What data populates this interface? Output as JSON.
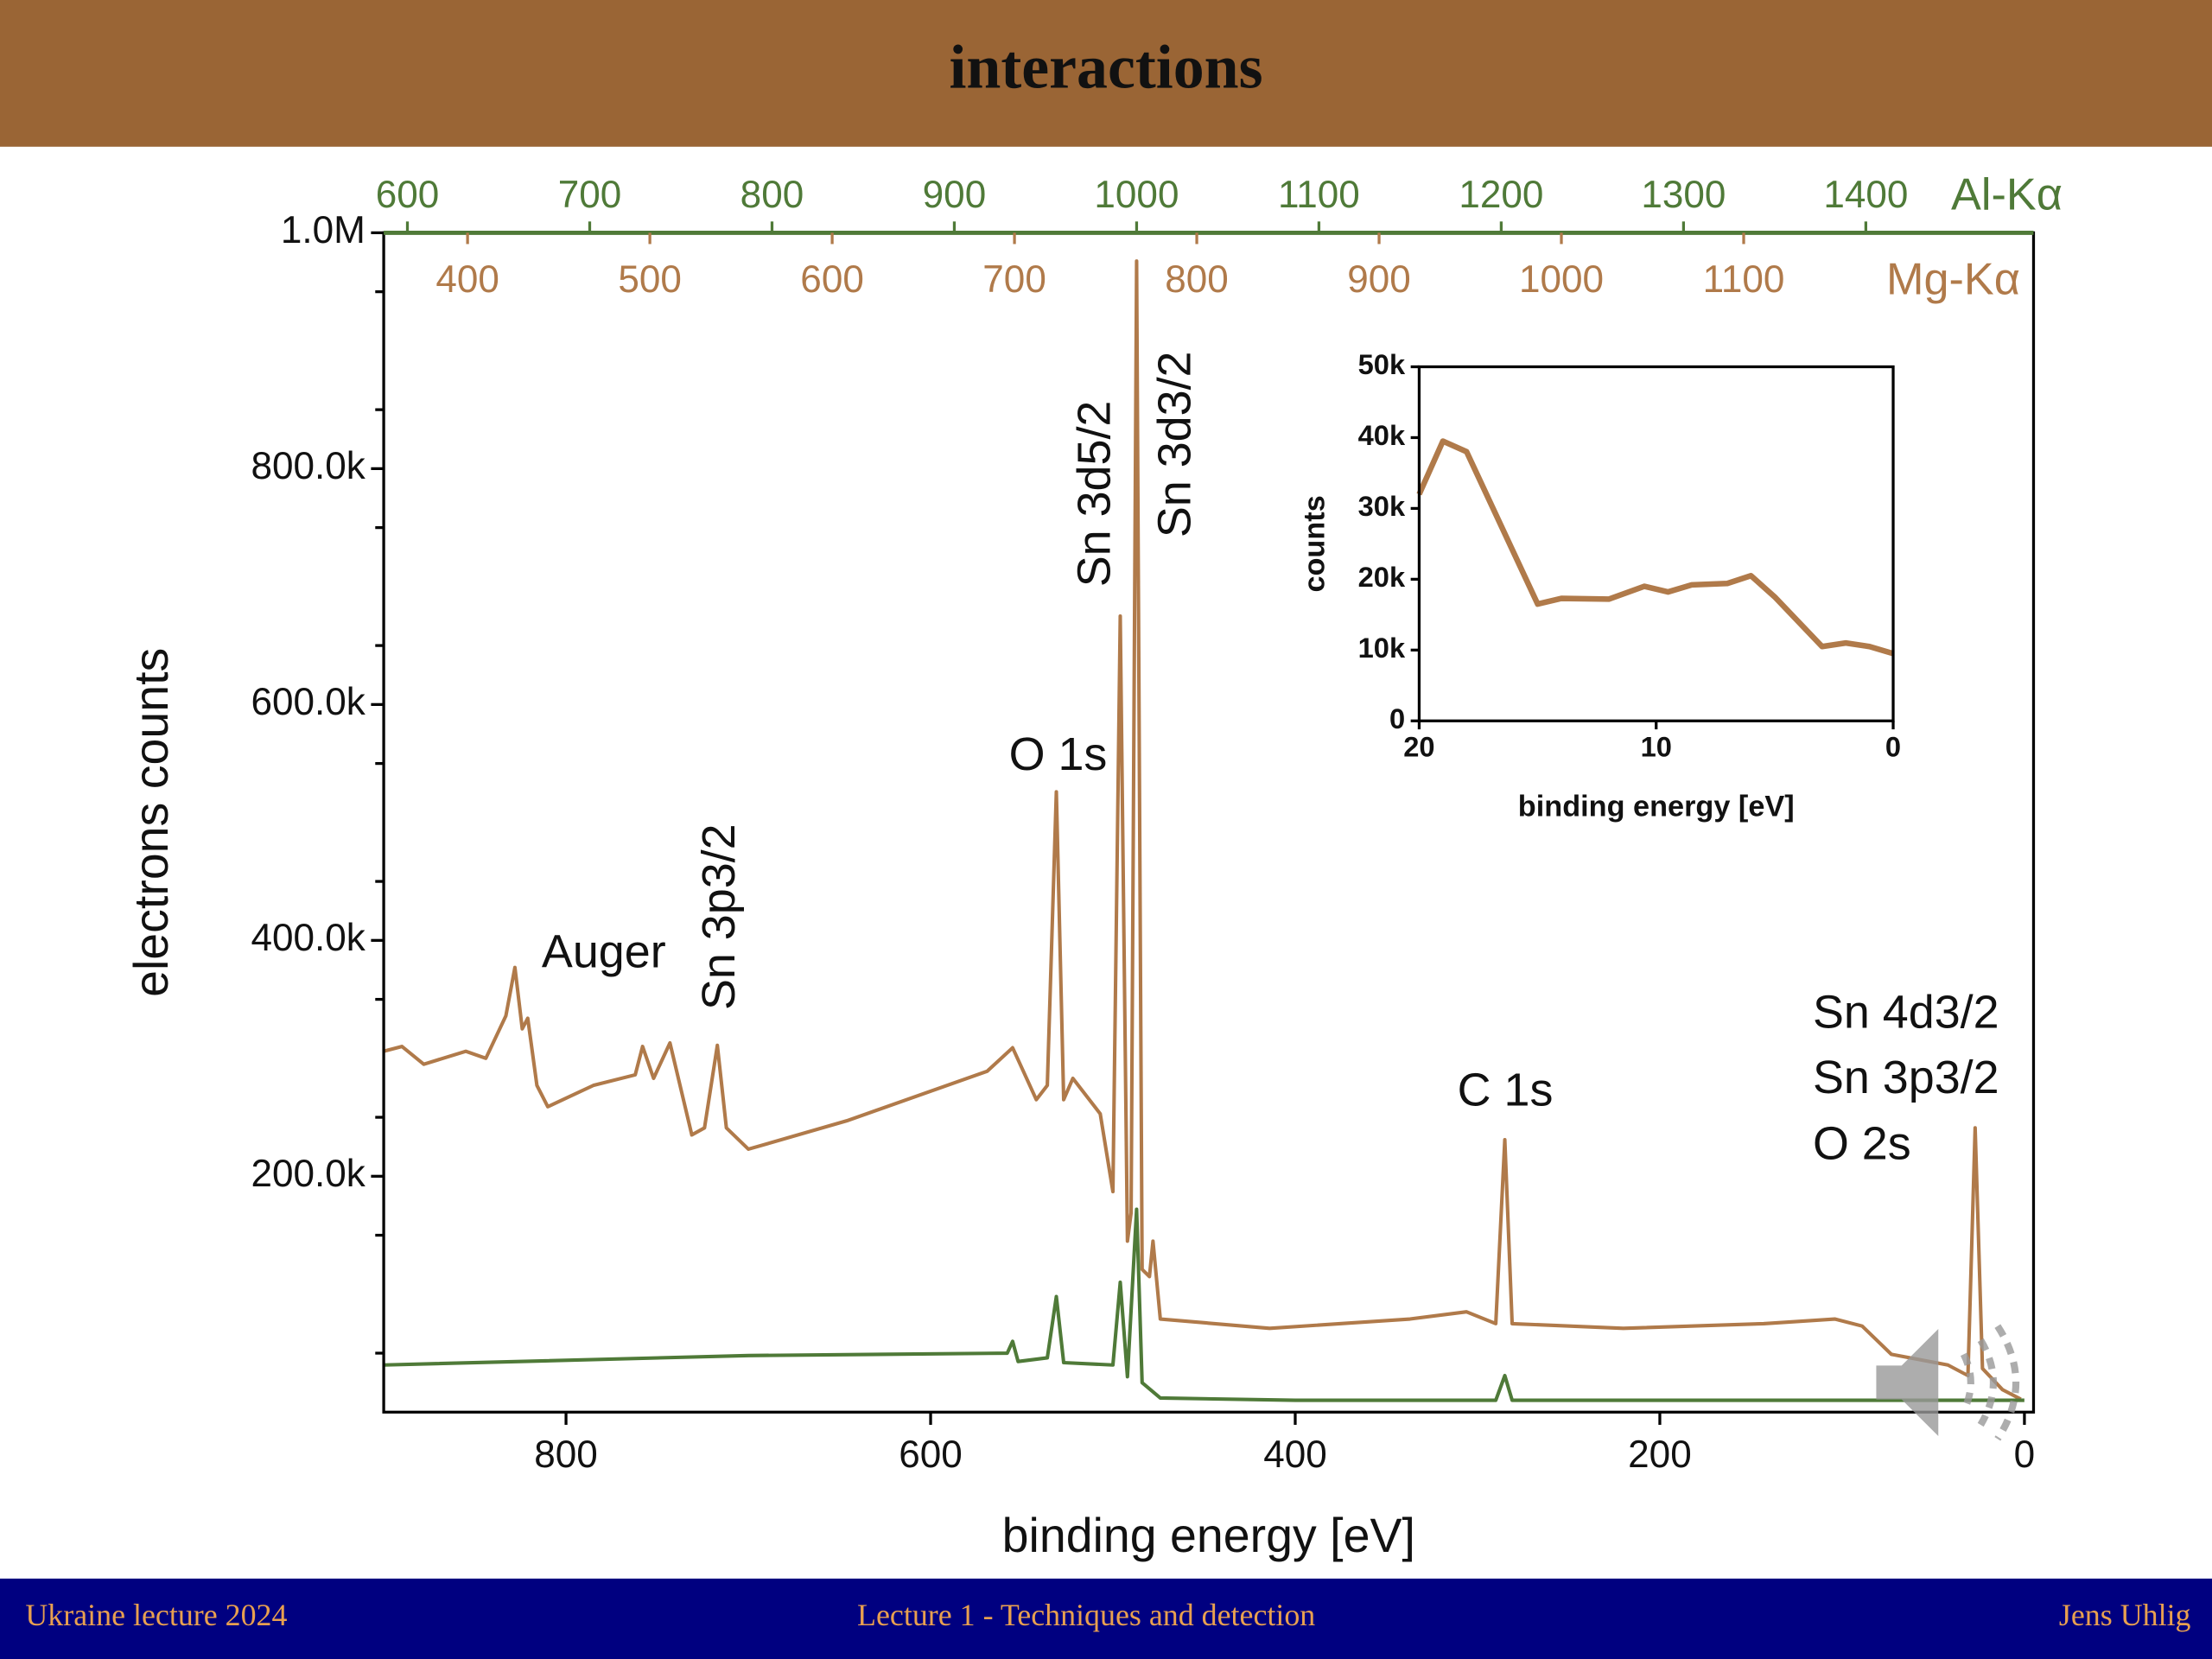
{
  "slide": {
    "title": "interactions",
    "footer_left": "Ukraine lecture 2024",
    "footer_center": "Lecture 1 - Techniques and detection",
    "footer_right": "Jens Uhlig"
  },
  "chart_data": [
    {
      "type": "line",
      "x_label": "binding energy [eV]",
      "y_label": "electrons counts",
      "xlim": [
        900,
        -5
      ],
      "xticks": [
        800,
        600,
        400,
        200,
        0
      ],
      "ylim": [
        0,
        1000000
      ],
      "yticks": [
        {
          "value": 200000,
          "label": "200.0k"
        },
        {
          "value": 400000,
          "label": "400.0k"
        },
        {
          "value": 600000,
          "label": "600.0k"
        },
        {
          "value": 800000,
          "label": "800.0k"
        },
        {
          "value": 1000000,
          "label": "1.0M"
        }
      ],
      "series": [
        {
          "name": "Mg-Kα",
          "color": "#b07a4a",
          "top_xlim": [
            354,
            1259
          ],
          "top_xticks": [
            400,
            500,
            600,
            700,
            800,
            900,
            1000,
            1100
          ],
          "x": [
            900,
            890,
            878,
            855,
            844,
            833,
            828,
            824,
            821,
            816,
            810,
            785,
            762,
            758,
            752,
            743,
            731,
            724,
            717,
            712,
            700,
            646,
            569,
            555,
            542,
            536,
            531,
            527,
            522,
            507,
            500,
            496,
            492,
            490,
            487,
            484,
            480,
            478,
            474,
            414,
            337,
            306,
            290,
            285,
            281,
            220,
            143,
            104,
            89,
            73,
            42,
            31,
            27,
            23,
            12,
            2
          ],
          "values": [
            306000,
            310000,
            295000,
            306000,
            300000,
            336000,
            377000,
            325000,
            334000,
            277000,
            259000,
            277000,
            286000,
            310000,
            283000,
            313000,
            235000,
            241000,
            311000,
            241000,
            223000,
            247000,
            289000,
            309000,
            265000,
            277000,
            526000,
            265000,
            283000,
            253000,
            187000,
            675000,
            145000,
            169000,
            976000,
            121000,
            115000,
            145000,
            79000,
            71000,
            79000,
            85000,
            75000,
            231000,
            75000,
            71000,
            75000,
            79000,
            73000,
            49000,
            40000,
            31000,
            241000,
            37000,
            19000,
            11000
          ]
        },
        {
          "name": "Al-Kα",
          "color": "#4f7a38",
          "top_xlim": [
            587,
            1492
          ],
          "top_xticks": [
            600,
            700,
            800,
            900,
            1000,
            1100,
            1200,
            1300,
            1400
          ],
          "x": [
            900,
            700,
            558,
            555,
            552,
            536,
            531,
            527,
            500,
            496,
            492,
            487,
            484,
            474,
            400,
            290,
            285,
            281,
            0
          ],
          "values": [
            40000,
            48000,
            50000,
            60000,
            43000,
            46000,
            98000,
            42000,
            40000,
            110000,
            30000,
            172000,
            25000,
            12000,
            10000,
            10000,
            31000,
            10000,
            10000
          ]
        }
      ],
      "annotations": [
        "Auger",
        "Sn 3p3/2",
        "O 1s",
        "Sn 3d5/2",
        "Sn 3d3/2",
        "C 1s",
        "Sn 4d3/2",
        "Sn 3p3/2",
        "O 2s"
      ]
    },
    {
      "type": "line",
      "x_label": "binding energy [eV]",
      "y_label": "counts",
      "xlim": [
        20,
        0
      ],
      "xticks": [
        20,
        10,
        0
      ],
      "ylim": [
        0,
        50000
      ],
      "yticks": [
        0,
        {
          "value": 10000,
          "label": "10k"
        },
        {
          "value": 20000,
          "label": "20k"
        },
        {
          "value": 30000,
          "label": "30k"
        },
        {
          "value": 40000,
          "label": "40k"
        },
        {
          "value": 50000,
          "label": "50k"
        }
      ],
      "series": [
        {
          "color": "#b07a4a",
          "x": [
            20,
            19,
            18,
            15,
            14,
            12,
            10.5,
            9.5,
            8.5,
            7,
            6,
            5,
            3,
            2,
            1,
            0
          ],
          "values": [
            32000,
            39500,
            38000,
            16500,
            17300,
            17200,
            19000,
            18200,
            19200,
            19400,
            20500,
            17500,
            10500,
            11000,
            10500,
            9500
          ]
        }
      ]
    }
  ]
}
